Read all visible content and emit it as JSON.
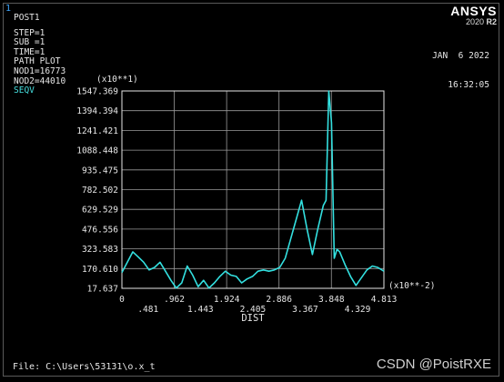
{
  "window_number": "1",
  "info_lines": [
    "POST1",
    "STEP=1",
    "SUB =1",
    "TIME=1",
    "PATH PLOT",
    "NOD1=16773",
    "NOD2=44010"
  ],
  "item_label": "SEQV",
  "brand": {
    "name": "ANSYS",
    "version": "2020",
    "release": "R2"
  },
  "datetime": {
    "date": "JAN  6 2022",
    "time": "16:32:05"
  },
  "file_line": "File: C:\\Users\\53131\\o.x_t",
  "watermark": "CSDN @PoistRXE",
  "colors": {
    "background": "#000000",
    "curve": "#33e0e0",
    "axes": "#e6e6e6",
    "grid": "#9a9a9a",
    "label_accent": "#46e0e0"
  },
  "chart_data": {
    "type": "line",
    "title": "",
    "xlabel": "DIST",
    "ylabel": "SEQV",
    "x_multiplier": "(x10**-2)",
    "y_multiplier": "(x10**1)",
    "xlim": [
      0,
      4.813
    ],
    "ylim": [
      17.637,
      1547.369
    ],
    "grid": true,
    "x_ticks_top": [
      "0",
      ".962",
      "1.924",
      "2.886",
      "3.848",
      "4.813"
    ],
    "x_ticks_bottom": [
      ".481",
      "1.443",
      "2.405",
      "3.367",
      "4.329"
    ],
    "x_ticks_top_values": [
      0,
      0.962,
      1.924,
      2.886,
      3.848,
      4.813
    ],
    "x_ticks_bottom_values": [
      0.481,
      1.443,
      2.405,
      3.367,
      4.329
    ],
    "y_ticks": [
      "17.637",
      "170.610",
      "323.583",
      "476.556",
      "629.529",
      "782.502",
      "935.475",
      "1088.448",
      "1241.421",
      "1394.394",
      "1547.369"
    ],
    "y_tick_values": [
      17.637,
      170.61,
      323.583,
      476.556,
      629.529,
      782.502,
      935.475,
      1088.448,
      1241.421,
      1394.394,
      1547.369
    ],
    "series": [
      {
        "x": [
          0,
          0.1,
          0.2,
          0.3,
          0.4,
          0.5,
          0.6,
          0.7,
          0.8,
          0.9,
          1.0,
          1.1,
          1.2,
          1.3,
          1.4,
          1.5,
          1.6,
          1.7,
          1.8,
          1.9,
          2.0,
          2.1,
          2.2,
          2.3,
          2.4,
          2.5,
          2.6,
          2.7,
          2.8,
          2.9,
          3.0,
          3.1,
          3.2,
          3.3,
          3.4,
          3.5,
          3.6,
          3.7,
          3.75,
          3.8,
          3.85,
          3.9,
          3.95,
          4.0,
          4.1,
          4.2,
          4.3,
          4.4,
          4.5,
          4.6,
          4.7,
          4.813
        ],
        "y": [
          140,
          220,
          300,
          260,
          220,
          160,
          180,
          220,
          150,
          80,
          20,
          60,
          190,
          120,
          30,
          80,
          20,
          60,
          110,
          150,
          120,
          110,
          60,
          90,
          110,
          150,
          160,
          150,
          160,
          180,
          250,
          400,
          550,
          700,
          480,
          280,
          480,
          660,
          700,
          1547,
          1300,
          250,
          320,
          300,
          200,
          110,
          40,
          100,
          160,
          190,
          180,
          150
        ]
      }
    ]
  }
}
